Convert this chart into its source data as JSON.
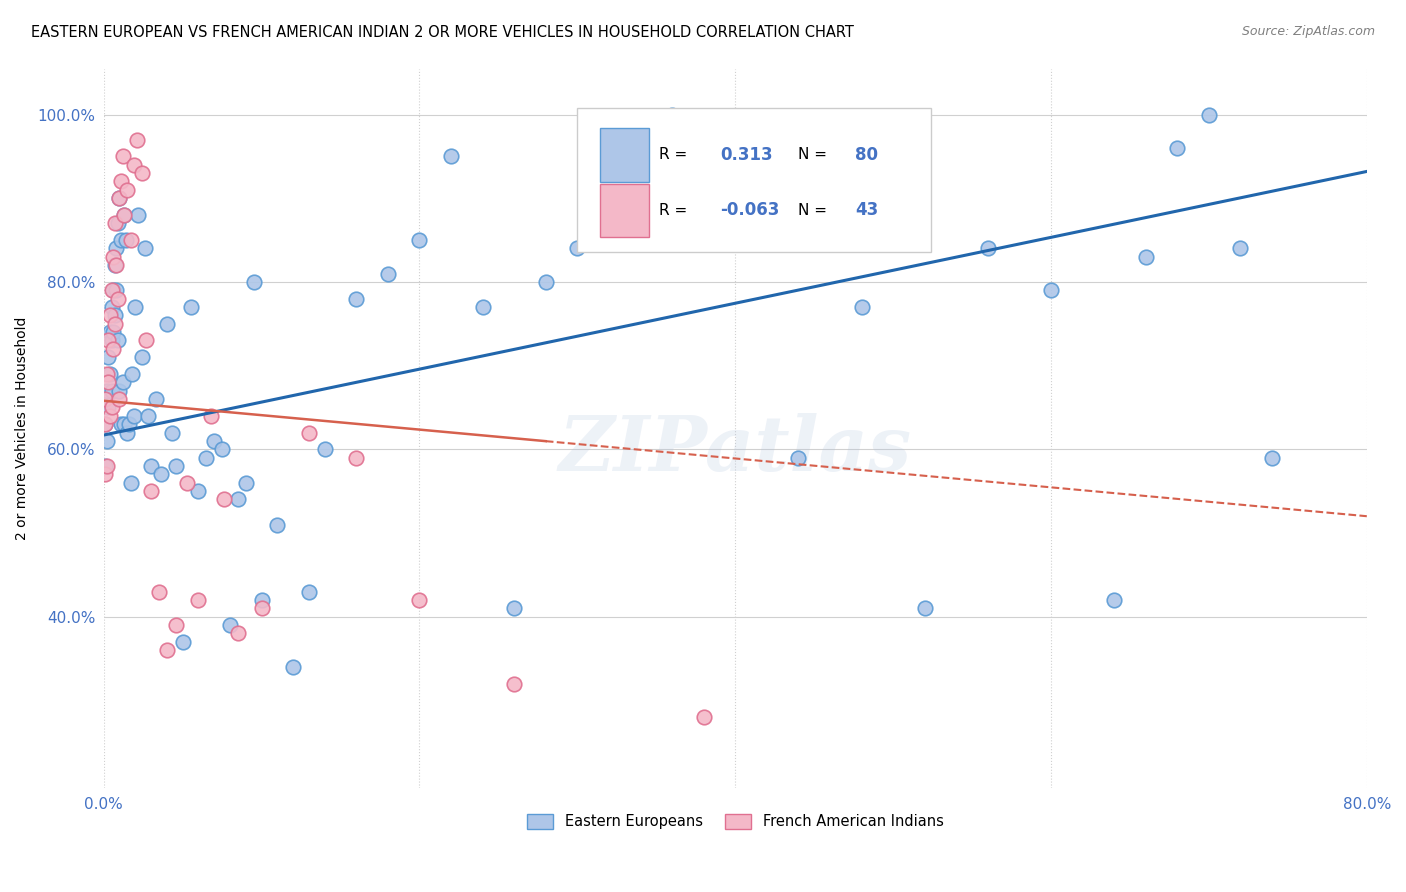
{
  "title": "EASTERN EUROPEAN VS FRENCH AMERICAN INDIAN 2 OR MORE VEHICLES IN HOUSEHOLD CORRELATION CHART",
  "source": "Source: ZipAtlas.com",
  "ylabel": "2 or more Vehicles in Household",
  "xlim": [
    0.0,
    0.8
  ],
  "ylim": [
    0.195,
    1.055
  ],
  "xticks": [
    0.0,
    0.2,
    0.4,
    0.6,
    0.8
  ],
  "xticklabels": [
    "0.0%",
    "",
    "",
    "",
    "80.0%"
  ],
  "yticks": [
    0.4,
    0.6,
    0.8,
    1.0
  ],
  "yticklabels": [
    "40.0%",
    "60.0%",
    "80.0%",
    "100.0%"
  ],
  "blue_color": "#aec6e8",
  "blue_edge_color": "#5b9bd5",
  "pink_color": "#f4b8c8",
  "pink_edge_color": "#e07090",
  "blue_line_color": "#2166ac",
  "pink_line_color": "#d6604d",
  "grid_color": "#d0d0d0",
  "watermark": "ZIPatlas",
  "blue_R": "0.313",
  "blue_N": "80",
  "pink_R": "-0.063",
  "pink_N": "43",
  "blue_x": [
    0.001,
    0.001,
    0.002,
    0.002,
    0.003,
    0.003,
    0.004,
    0.004,
    0.005,
    0.005,
    0.005,
    0.006,
    0.006,
    0.007,
    0.007,
    0.008,
    0.008,
    0.009,
    0.009,
    0.01,
    0.01,
    0.011,
    0.011,
    0.012,
    0.013,
    0.013,
    0.014,
    0.015,
    0.016,
    0.017,
    0.018,
    0.019,
    0.02,
    0.022,
    0.024,
    0.026,
    0.028,
    0.03,
    0.033,
    0.036,
    0.04,
    0.043,
    0.046,
    0.05,
    0.055,
    0.06,
    0.065,
    0.07,
    0.075,
    0.08,
    0.085,
    0.09,
    0.095,
    0.1,
    0.11,
    0.12,
    0.13,
    0.14,
    0.16,
    0.18,
    0.2,
    0.22,
    0.24,
    0.26,
    0.28,
    0.3,
    0.33,
    0.36,
    0.4,
    0.44,
    0.48,
    0.52,
    0.56,
    0.6,
    0.64,
    0.66,
    0.68,
    0.7,
    0.72,
    0.74
  ],
  "blue_y": [
    0.63,
    0.58,
    0.67,
    0.61,
    0.71,
    0.65,
    0.74,
    0.69,
    0.77,
    0.73,
    0.67,
    0.79,
    0.74,
    0.82,
    0.76,
    0.84,
    0.79,
    0.87,
    0.73,
    0.9,
    0.67,
    0.85,
    0.63,
    0.68,
    0.88,
    0.63,
    0.85,
    0.62,
    0.63,
    0.56,
    0.69,
    0.64,
    0.77,
    0.88,
    0.71,
    0.84,
    0.64,
    0.58,
    0.66,
    0.57,
    0.75,
    0.62,
    0.58,
    0.37,
    0.77,
    0.55,
    0.59,
    0.61,
    0.6,
    0.39,
    0.54,
    0.56,
    0.8,
    0.42,
    0.51,
    0.34,
    0.43,
    0.6,
    0.78,
    0.81,
    0.85,
    0.95,
    0.77,
    0.41,
    0.8,
    0.84,
    0.95,
    1.0,
    0.85,
    0.59,
    0.77,
    0.41,
    0.84,
    0.79,
    0.42,
    0.83,
    0.96,
    1.0,
    0.84,
    0.59
  ],
  "pink_x": [
    0.001,
    0.001,
    0.001,
    0.002,
    0.002,
    0.003,
    0.003,
    0.004,
    0.004,
    0.005,
    0.005,
    0.006,
    0.006,
    0.007,
    0.007,
    0.008,
    0.009,
    0.01,
    0.01,
    0.011,
    0.012,
    0.013,
    0.015,
    0.017,
    0.019,
    0.021,
    0.024,
    0.027,
    0.03,
    0.035,
    0.04,
    0.046,
    0.053,
    0.06,
    0.068,
    0.076,
    0.085,
    0.1,
    0.13,
    0.16,
    0.2,
    0.26,
    0.38
  ],
  "pink_y": [
    0.66,
    0.63,
    0.57,
    0.69,
    0.58,
    0.73,
    0.68,
    0.76,
    0.64,
    0.79,
    0.65,
    0.83,
    0.72,
    0.87,
    0.75,
    0.82,
    0.78,
    0.9,
    0.66,
    0.92,
    0.95,
    0.88,
    0.91,
    0.85,
    0.94,
    0.97,
    0.93,
    0.73,
    0.55,
    0.43,
    0.36,
    0.39,
    0.56,
    0.42,
    0.64,
    0.54,
    0.38,
    0.41,
    0.62,
    0.59,
    0.42,
    0.32,
    0.28
  ],
  "blue_line_x0": 0.0,
  "blue_line_x1": 0.8,
  "blue_line_y0": 0.617,
  "blue_line_y1": 0.932,
  "pink_line_x0": 0.0,
  "pink_line_x1": 0.8,
  "pink_line_y0": 0.658,
  "pink_line_y1": 0.52
}
